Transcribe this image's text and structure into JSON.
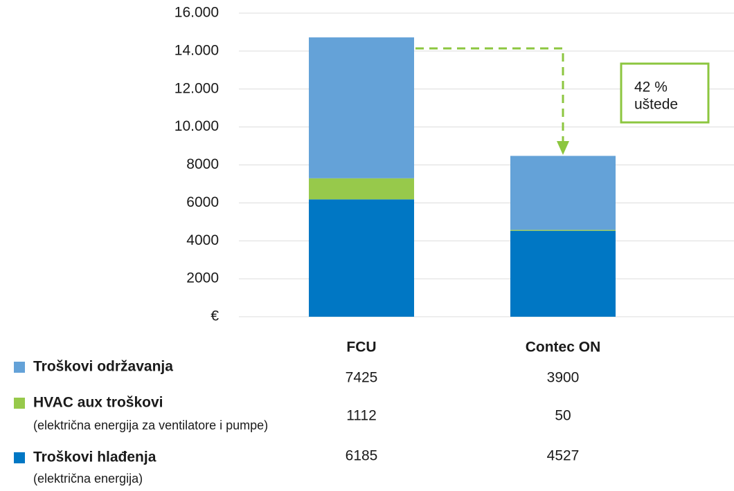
{
  "chart_data": {
    "type": "stacked-bar",
    "categories": [
      "FCU",
      "Contec ON"
    ],
    "series": [
      {
        "name": "Troškovi održavanja",
        "color": "#64a2d8",
        "values": [
          7425,
          3900
        ]
      },
      {
        "name": "HVAC aux troškovi",
        "note": "(električna energija za ventilatore i pumpe)",
        "color": "#97c94b",
        "values": [
          1112,
          50
        ]
      },
      {
        "name": "Troškovi hlađenja",
        "note": "(električna energija)",
        "color": "#0077c4",
        "values": [
          6185,
          4527
        ]
      }
    ],
    "ylim": [
      0,
      16000
    ],
    "yticks": [
      {
        "value": 0,
        "label": "€"
      },
      2000,
      4000,
      6000,
      8000,
      {
        "value": 10000,
        "label": "10.000"
      },
      {
        "value": 12000,
        "label": "12.000"
      },
      {
        "value": 14000,
        "label": "14.000"
      },
      {
        "value": 16000,
        "label": "16.000"
      }
    ],
    "grid": true,
    "annotation": [
      "42 %",
      "uštede"
    ]
  }
}
